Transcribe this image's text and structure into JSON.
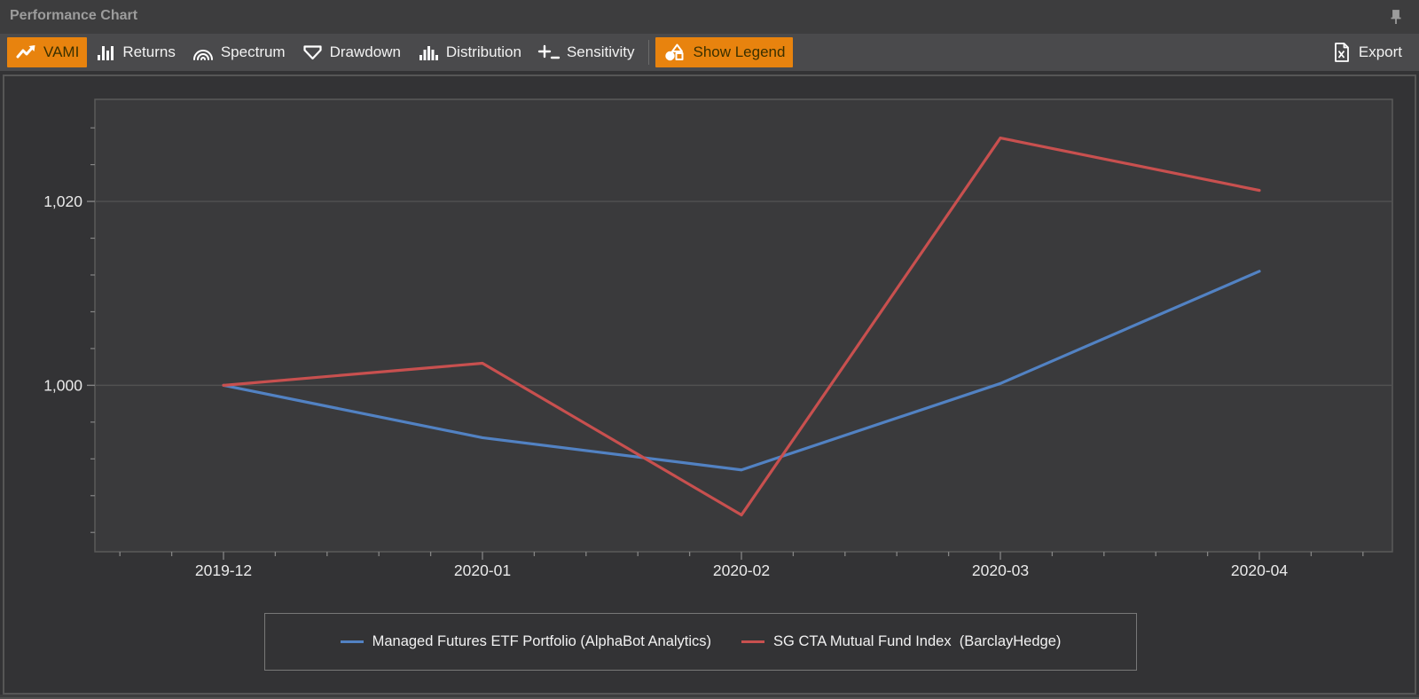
{
  "window": {
    "title": "Performance Chart"
  },
  "toolbar": {
    "buttons": [
      {
        "label": "VAMI",
        "icon": "trend-up-icon",
        "active": true
      },
      {
        "label": "Returns",
        "icon": "bar-chart-icon",
        "active": false
      },
      {
        "label": "Spectrum",
        "icon": "spectrum-arcs-icon",
        "active": false
      },
      {
        "label": "Drawdown",
        "icon": "drawdown-flag-icon",
        "active": false
      },
      {
        "label": "Distribution",
        "icon": "histogram-icon",
        "active": false
      },
      {
        "label": "Sensitivity",
        "icon": "sensitivity-icon",
        "active": false
      }
    ],
    "legend_toggle": {
      "label": "Show Legend",
      "icon": "shapes-icon",
      "active": true
    },
    "export": {
      "label": "Export",
      "icon": "excel-file-icon"
    }
  },
  "chart_data": {
    "type": "line",
    "title": "",
    "x_categories": [
      "2019-12",
      "2020-01",
      "2020-02",
      "2020-03",
      "2020-04"
    ],
    "series": [
      {
        "name": "Managed Futures ETF Portfolio (AlphaBot Analytics)",
        "color": "#5282c3",
        "values": [
          1000,
          994.3,
          990.8,
          1000.2,
          1012.4
        ]
      },
      {
        "name": "SG CTA Mutual Fund Index  (BarclayHedge)",
        "color": "#c8504f",
        "values": [
          1000,
          1002.4,
          985.9,
          1026.9,
          1021.2
        ]
      }
    ],
    "ylim": [
      981.9,
      1031.1
    ],
    "y_major_ticks": [
      1020,
      1000
    ],
    "y_tick_labels": [
      "1,020",
      "1,000"
    ],
    "y_minor_step": 4,
    "x_minor_per_interval": 5,
    "grid": "horizontal-major-only",
    "legend_position": "bottom"
  },
  "colors": {
    "accent_orange": "#e8830e",
    "active_text": "#3a3000",
    "series_blue": "#5282c3",
    "series_red": "#c8504f",
    "plot_background": "#3a3a3c",
    "plot_border": "#5a5a5a",
    "gridline": "#515151",
    "tick": "#858585",
    "axis_text": "#eaeaea"
  }
}
